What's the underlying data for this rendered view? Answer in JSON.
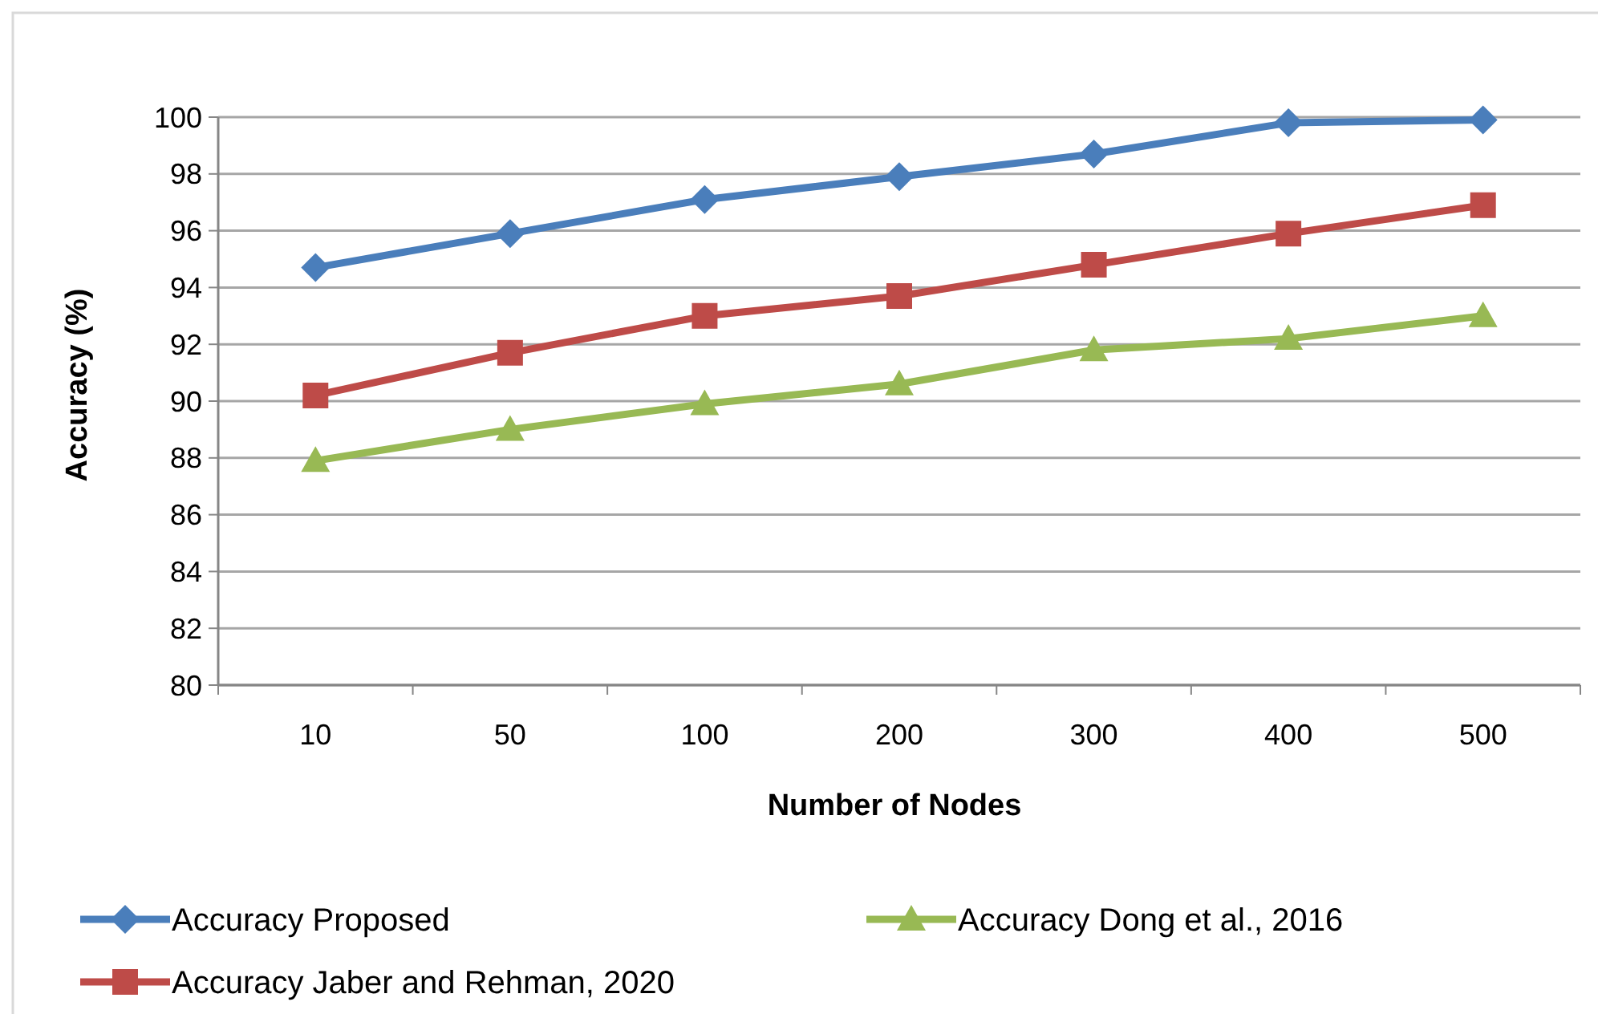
{
  "chart_data": {
    "type": "line",
    "xlabel": "Number of Nodes",
    "ylabel": "Accuracy (%)",
    "categories": [
      "10",
      "50",
      "100",
      "200",
      "300",
      "400",
      "500"
    ],
    "series": [
      {
        "name": "Accuracy Proposed",
        "color": "#4a7ebb",
        "marker": "diamond",
        "values": [
          94.7,
          95.9,
          97.1,
          97.9,
          98.7,
          99.8,
          99.9
        ]
      },
      {
        "name": "Accuracy  Jaber and Rehman, 2020",
        "color": "#be4b48",
        "marker": "square",
        "values": [
          90.2,
          91.7,
          93.0,
          93.7,
          94.8,
          95.9,
          96.9
        ]
      },
      {
        "name": "Accuracy Dong et al., 2016",
        "color": "#98b954",
        "marker": "triangle",
        "values": [
          87.9,
          89.0,
          89.9,
          90.6,
          91.8,
          92.2,
          93.0
        ]
      }
    ],
    "ylim": [
      80,
      100
    ],
    "yticks": [
      80,
      82,
      84,
      86,
      88,
      90,
      92,
      94,
      96,
      98,
      100
    ],
    "grid": "y",
    "legend": "bottom",
    "line_style": "solid"
  }
}
